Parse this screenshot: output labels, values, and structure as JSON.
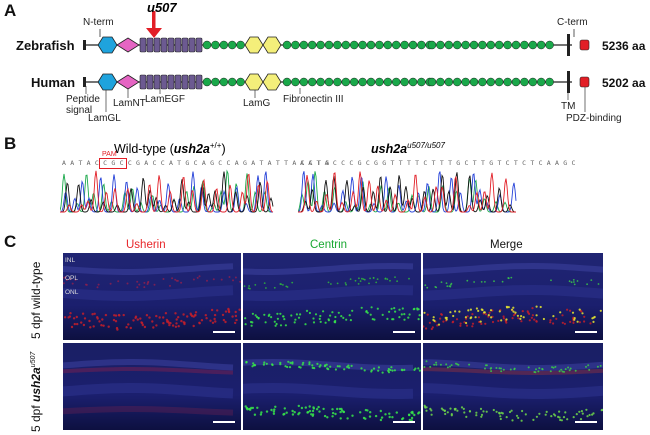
{
  "panels": {
    "a": "A",
    "b": "B",
    "c": "C"
  },
  "panelA": {
    "mutation": "u507",
    "nterm": "N-term",
    "cterm": "C-term",
    "zebrafish": {
      "name": "Zebrafish",
      "length": "5236 aa"
    },
    "human": {
      "name": "Human",
      "length": "5202 aa"
    },
    "domains": {
      "peptide_signal_line1": "Peptide",
      "peptide_signal_line2": "signal",
      "lamgl": "LamGL",
      "lamnt": "LamNT",
      "lamegf": "LamEGF",
      "lamg": "LamG",
      "fibronectin": "Fibronectin III",
      "tm": "TM",
      "pdz": "PDZ-binding"
    },
    "colors": {
      "lamgl": "#1fa3dd",
      "lamnt": "#e565c3",
      "lamegf": "#6c5a91",
      "lamg": "#f4ef7a",
      "fibronectin": "#1aa84a",
      "pdz": "#e21e26",
      "arrow": "#e21e26"
    }
  },
  "panelB": {
    "wt_title_prefix": "Wild-type (",
    "wt_gene": "ush2a",
    "wt_sup": "+/+",
    "wt_title_suffix": ")",
    "mut_gene": "ush2a",
    "mut_sup": "u507/u507",
    "pam": "PAM",
    "wt_seq": "A A T A C C G C C G A C C A T G C A G C C A G A T A T T A C C T G",
    "mut_seq": "A A T A C C C G C G G T T T T C T T T G C T T G T C T C T C A A G C"
  },
  "panelC": {
    "col_usherin": "Usherin",
    "col_centrin": "Centrin",
    "col_merge": "Merge",
    "row1_label": "5 dpf wild-type",
    "row2_prefix": "5 dpf ",
    "row2_gene": "ush2a",
    "row2_sup": "u507",
    "inl": "INL",
    "opl": "OPL",
    "onl": "ONL",
    "colors": {
      "usherin": "#e8262a",
      "centrin": "#19a832",
      "merge": "#111111"
    }
  }
}
